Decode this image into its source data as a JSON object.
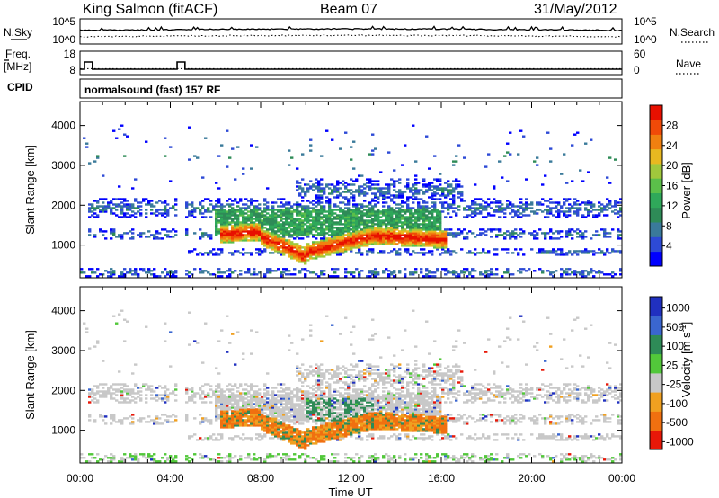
{
  "header": {
    "station": "King Salmon (fitACF)",
    "beam": "Beam 07",
    "date": "31/May/2012"
  },
  "side_labels": {
    "nsky": "N.Sky",
    "nsearch": "N.Search",
    "freq_line1": "Freq.",
    "freq_line2": "[MHz]",
    "nave": "Nave",
    "cpid": "CPID"
  },
  "chart_data": [
    {
      "type": "line",
      "name": "noise",
      "y_ticks_left": [
        "10^5",
        "10^0"
      ],
      "y_ticks_right": [
        "10^5",
        "10^0"
      ],
      "series": [
        {
          "name": "N.Sky",
          "style": "solid"
        },
        {
          "name": "N.Search",
          "style": "dotted"
        }
      ]
    },
    {
      "type": "line",
      "name": "frequency",
      "y_ticks_left": [
        "18",
        "8"
      ],
      "y_ticks_right": [
        "60",
        "0"
      ],
      "series": [
        {
          "name": "Freq.",
          "style": "solid",
          "baseline_mhz": 10.5,
          "steps": [
            {
              "from_h": 0.2,
              "to_h": 0.55,
              "value_mhz": 14.5
            },
            {
              "from_h": 4.3,
              "to_h": 4.65,
              "value_mhz": 14.5
            }
          ]
        },
        {
          "name": "Nave",
          "style": "dotted",
          "baseline": 17
        }
      ]
    },
    {
      "type": "table",
      "name": "cpid",
      "program": "normalsound (fast) 157 RF"
    },
    {
      "type": "heatmap",
      "name": "power",
      "ylabel": "Slant Range [km]",
      "ylim": [
        180,
        4600
      ],
      "y_ticks": [
        "1000",
        "2000",
        "3000",
        "4000"
      ],
      "colorbar": {
        "label": "Power [dB]",
        "ticks": [
          "4",
          "8",
          "12",
          "16",
          "20",
          "24",
          "28"
        ],
        "range": [
          0,
          32
        ],
        "colors": [
          "#0000ff",
          "#2d4ad6",
          "#3a7a9a",
          "#2e8b57",
          "#2fa85a",
          "#5bbf4a",
          "#a0c83c",
          "#e8b820",
          "#f08010",
          "#f04a08",
          "#e81000"
        ]
      },
      "x_ticks": [
        "00:00",
        "04:00",
        "08:00",
        "12:00",
        "16:00",
        "20:00",
        "00:00"
      ],
      "xlim_hours": [
        0,
        24
      ]
    },
    {
      "type": "heatmap",
      "name": "velocity",
      "ylabel": "Slant Range [km]",
      "ylim": [
        180,
        4600
      ],
      "y_ticks": [
        "1000",
        "2000",
        "3000",
        "4000"
      ],
      "colorbar": {
        "label": "Velocity [m s",
        "label_sup": "-1",
        "label_end": "]",
        "ticks": [
          "1000",
          "500",
          "100",
          "25",
          "-25",
          "-100",
          "-500",
          "-1000"
        ],
        "colors": [
          "#2030c0",
          "#3a66d0",
          "#2e8b57",
          "#52c83a",
          "#c8c8c8",
          "#f0a020",
          "#f07010",
          "#e81808"
        ]
      },
      "x_ticks": [
        "00:00",
        "04:00",
        "08:00",
        "12:00",
        "16:00",
        "20:00",
        "00:00"
      ],
      "xlabel": "Time UT",
      "xlim_hours": [
        0,
        24
      ]
    }
  ]
}
